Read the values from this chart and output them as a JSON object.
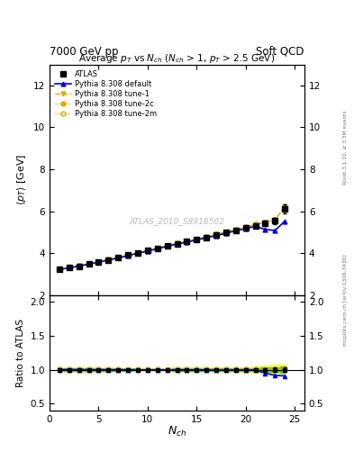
{
  "title_left": "7000 GeV pp",
  "title_right": "Soft QCD",
  "plot_title": "Average $p_T$ vs $N_{ch}$ ($N_{ch}$ > 1, $p_T$ > 2.5 GeV)",
  "xlabel": "$N_{ch}$",
  "ylabel_main": "$\\langle p_T \\rangle$ [GeV]",
  "ylabel_ratio": "Ratio to ATLAS",
  "right_label": "mcplots.cern.ch [arXiv:1306.3436]",
  "right_label2": "Rivet 3.1.10, ≥ 3.3M events",
  "watermark": "ATLAS_2010_S8918562",
  "atlas_x": [
    1,
    2,
    3,
    4,
    5,
    6,
    7,
    8,
    9,
    10,
    11,
    12,
    13,
    14,
    15,
    16,
    17,
    18,
    19,
    20,
    21,
    22,
    23,
    24
  ],
  "atlas_y": [
    3.22,
    3.3,
    3.38,
    3.48,
    3.58,
    3.68,
    3.78,
    3.9,
    4.0,
    4.12,
    4.22,
    4.35,
    4.44,
    4.55,
    4.65,
    4.75,
    4.88,
    4.98,
    5.1,
    5.2,
    5.3,
    5.42,
    5.55,
    6.1
  ],
  "atlas_yerr": [
    0.05,
    0.04,
    0.04,
    0.04,
    0.04,
    0.04,
    0.04,
    0.04,
    0.04,
    0.04,
    0.04,
    0.04,
    0.05,
    0.05,
    0.05,
    0.05,
    0.06,
    0.06,
    0.07,
    0.08,
    0.1,
    0.12,
    0.15,
    0.22
  ],
  "default_x": [
    1,
    2,
    3,
    4,
    5,
    6,
    7,
    8,
    9,
    10,
    11,
    12,
    13,
    14,
    15,
    16,
    17,
    18,
    19,
    20,
    21,
    22,
    23,
    24
  ],
  "default_y": [
    3.22,
    3.3,
    3.38,
    3.47,
    3.57,
    3.67,
    3.77,
    3.88,
    3.99,
    4.1,
    4.21,
    4.33,
    4.43,
    4.53,
    4.63,
    4.73,
    4.84,
    4.95,
    5.07,
    5.17,
    5.28,
    5.13,
    5.08,
    5.53
  ],
  "tune1_x": [
    1,
    2,
    3,
    4,
    5,
    6,
    7,
    8,
    9,
    10,
    11,
    12,
    13,
    14,
    15,
    16,
    17,
    18,
    19,
    20,
    21,
    22,
    23,
    24
  ],
  "tune1_y": [
    3.23,
    3.31,
    3.39,
    3.49,
    3.59,
    3.69,
    3.79,
    3.91,
    4.01,
    4.13,
    4.24,
    4.36,
    4.46,
    4.57,
    4.67,
    4.78,
    4.9,
    5.01,
    5.13,
    5.24,
    5.36,
    5.48,
    5.58,
    6.2
  ],
  "tune2c_x": [
    1,
    2,
    3,
    4,
    5,
    6,
    7,
    8,
    9,
    10,
    11,
    12,
    13,
    14,
    15,
    16,
    17,
    18,
    19,
    20,
    21,
    22,
    23,
    24
  ],
  "tune2c_y": [
    3.23,
    3.31,
    3.39,
    3.49,
    3.59,
    3.69,
    3.79,
    3.91,
    4.01,
    4.13,
    4.24,
    4.36,
    4.46,
    4.57,
    4.67,
    4.78,
    4.9,
    5.01,
    5.13,
    5.24,
    5.36,
    5.48,
    5.58,
    6.22
  ],
  "tune2m_x": [
    1,
    2,
    3,
    4,
    5,
    6,
    7,
    8,
    9,
    10,
    11,
    12,
    13,
    14,
    15,
    16,
    17,
    18,
    19,
    20,
    21,
    22,
    23,
    24
  ],
  "tune2m_y": [
    3.23,
    3.31,
    3.39,
    3.49,
    3.59,
    3.69,
    3.79,
    3.91,
    4.01,
    4.13,
    4.24,
    4.36,
    4.46,
    4.57,
    4.67,
    4.78,
    4.9,
    5.01,
    5.13,
    5.24,
    5.36,
    5.48,
    5.6,
    6.25
  ],
  "ylim_main": [
    2.0,
    13.0
  ],
  "ylim_ratio": [
    0.4,
    2.1
  ],
  "xlim": [
    0,
    26
  ],
  "yticks_main": [
    2,
    4,
    6,
    8,
    10,
    12
  ],
  "yticks_ratio": [
    0.5,
    1.0,
    1.5,
    2.0
  ],
  "xticks": [
    0,
    5,
    10,
    15,
    20,
    25
  ],
  "color_atlas": "#000000",
  "color_default": "#0000dd",
  "color_tune1": "#ddaa00",
  "color_tune2c": "#ddaa00",
  "color_tune2m": "#ddaa00",
  "band_yellow": "#ffff44",
  "band_green": "#44cc44",
  "bg_color": "#ffffff"
}
